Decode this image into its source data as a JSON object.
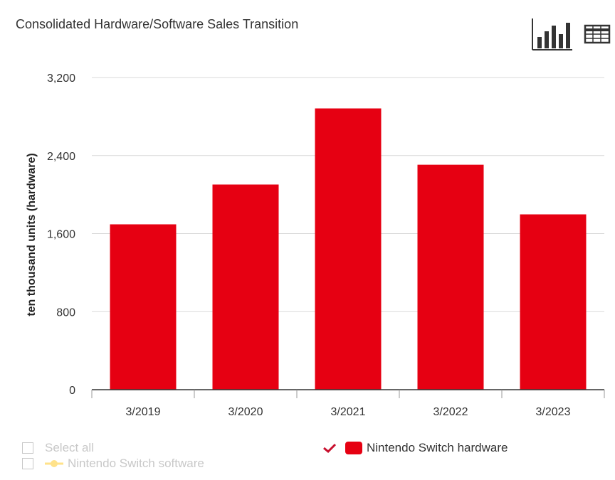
{
  "header": {
    "title": "Consolidated Hardware/Software Sales Transition",
    "chart_view_icon": "bar-chart-icon",
    "table_view_icon": "table-grid-icon"
  },
  "chart_data": {
    "type": "bar",
    "title": "Consolidated Hardware/Software Sales Transition",
    "xlabel": "",
    "ylabel": "ten thousand units (hardware)",
    "categories": [
      "3/2019",
      "3/2020",
      "3/2021",
      "3/2022",
      "3/2023"
    ],
    "series": [
      {
        "name": "Nintendo Switch hardware",
        "values": [
          1695,
          2103,
          2883,
          2306,
          1797
        ],
        "color": "#e60012"
      }
    ],
    "ylim": [
      0,
      3200
    ],
    "yticks": [
      0,
      800,
      1600,
      2400,
      3200
    ],
    "ytick_labels": [
      "0",
      "800",
      "1,600",
      "2,400",
      "3,200"
    ],
    "grid": true,
    "legend": "bottom"
  },
  "legend": {
    "select_all": "Select all",
    "software_label": "Nintendo Switch software",
    "software_color": "#ffe28a",
    "hardware_label": "Nintendo Switch hardware",
    "hardware_color": "#e60012",
    "check_color": "#c8102e"
  }
}
